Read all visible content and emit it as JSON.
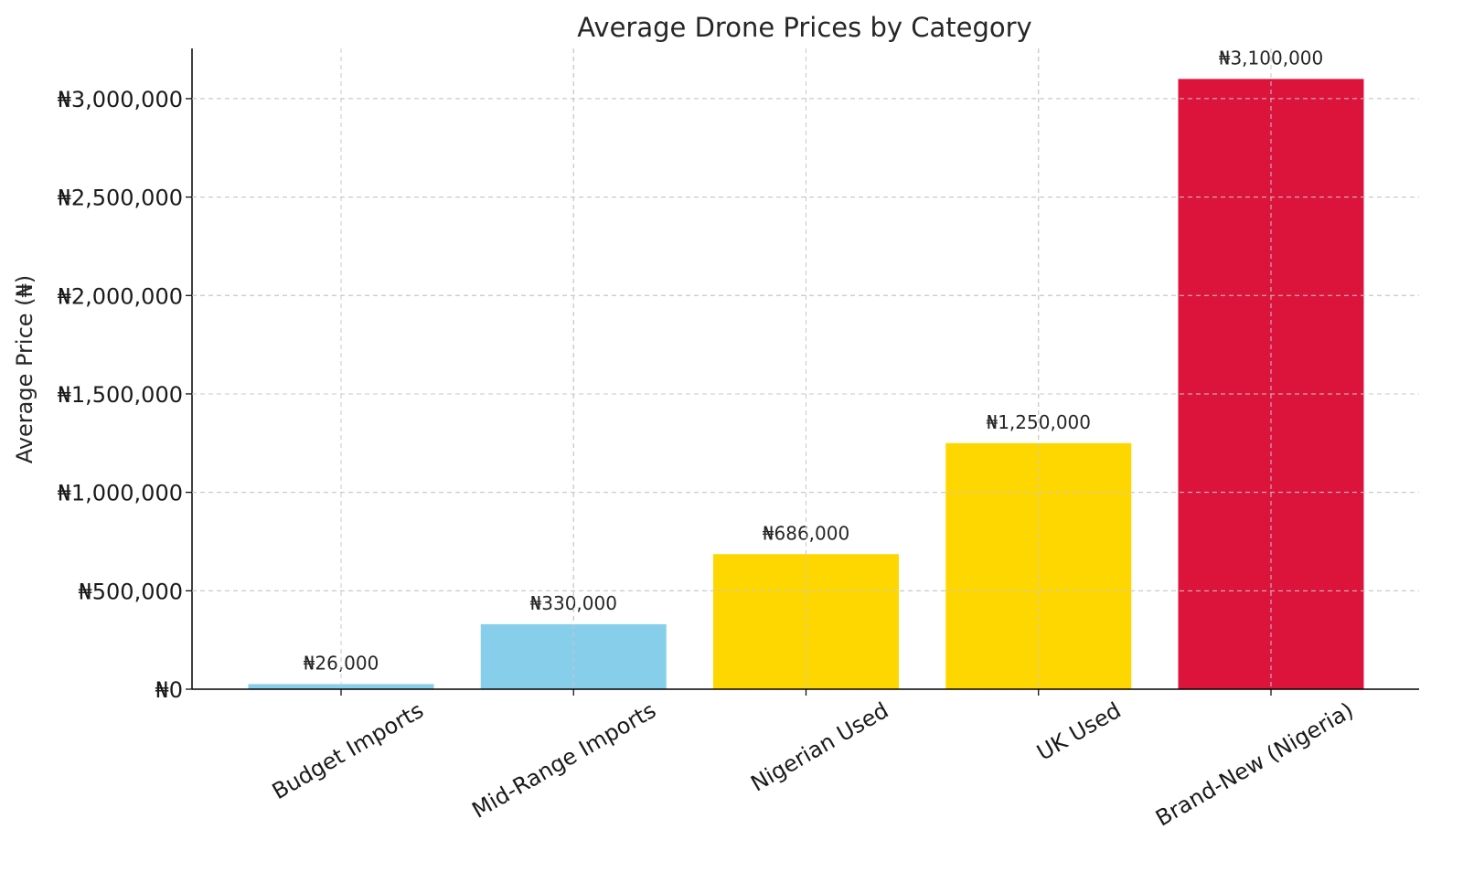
{
  "chart_data": {
    "type": "bar",
    "title": "Average Drone Prices by Category",
    "xlabel": "",
    "ylabel": "Average Price (₦)",
    "categories": [
      "Budget Imports",
      "Mid-Range Imports",
      "Nigerian Used",
      "UK Used",
      "Brand-New (Nigeria)"
    ],
    "values": [
      26000,
      330000,
      686000,
      1250000,
      3100000
    ],
    "value_labels": [
      "₦26,000",
      "₦330,000",
      "₦686,000",
      "₦1,250,000",
      "₦3,100,000"
    ],
    "colors": [
      "#87CEEB",
      "#87CEEB",
      "#FFD700",
      "#FFD700",
      "#DC143C"
    ],
    "ylim": [
      0,
      3255000
    ],
    "yticks": [
      0,
      500000,
      1000000,
      1500000,
      2000000,
      2500000,
      3000000
    ],
    "ytick_labels": [
      "₦0",
      "₦500,000",
      "₦1,000,000",
      "₦1,500,000",
      "₦2,000,000",
      "₦2,500,000",
      "₦3,000,000"
    ],
    "grid": true,
    "legend": "none"
  }
}
